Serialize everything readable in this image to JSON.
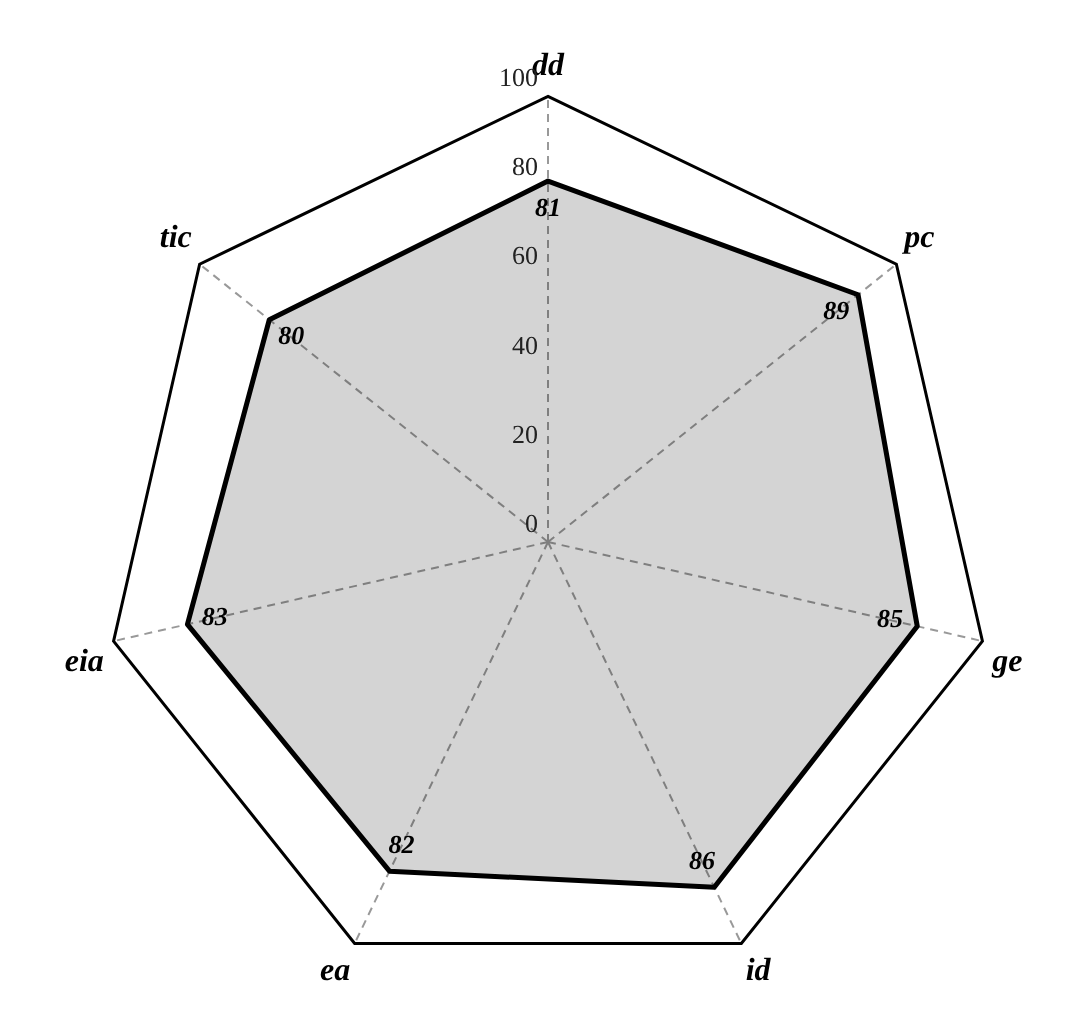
{
  "chart_data": {
    "type": "radar",
    "categories": [
      "dd",
      "pc",
      "ge",
      "id",
      "ea",
      "eia",
      "tic"
    ],
    "series": [
      {
        "color": "#000000",
        "values": [
          81,
          89,
          85,
          86,
          82,
          83,
          80
        ]
      }
    ],
    "ylim": [
      0,
      100
    ],
    "yticks": [
      0,
      20,
      40,
      60,
      80,
      100
    ],
    "grid": true,
    "data_labels": true,
    "legend": false,
    "marker": "none"
  }
}
